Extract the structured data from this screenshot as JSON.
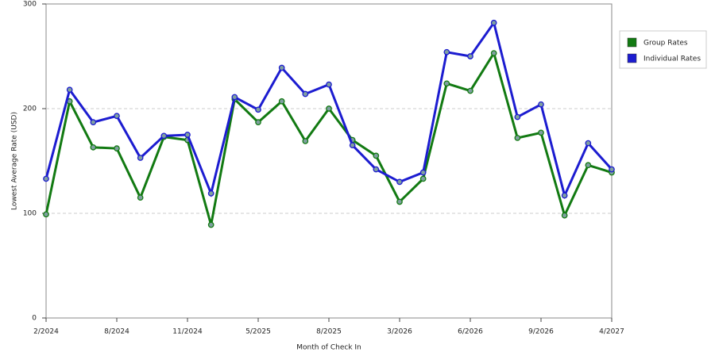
{
  "chart_data": {
    "type": "line",
    "x_label": "Month of Check In",
    "y_label": "Lowest Average Rate (USD)",
    "categories": [
      "2/2024",
      null,
      null,
      "8/2024",
      null,
      null,
      "11/2024",
      null,
      null,
      "5/2025",
      null,
      null,
      "8/2025",
      null,
      null,
      "3/2026",
      null,
      null,
      "6/2026",
      null,
      null,
      "9/2026",
      null,
      null,
      "4/2027"
    ],
    "series": [
      {
        "name": "Group Rates",
        "color": "#127a12",
        "values": [
          99,
          207,
          163,
          162,
          115,
          173,
          170,
          89,
          209,
          187,
          207,
          169,
          200,
          170,
          155,
          111,
          133,
          224,
          217,
          253,
          172,
          177,
          98,
          146,
          139
        ]
      },
      {
        "name": "Individual Rates",
        "color": "#1c1cd0",
        "values": [
          133,
          218,
          187,
          193,
          153,
          174,
          175,
          119,
          211,
          199,
          239,
          214,
          223,
          165,
          142,
          130,
          139,
          254,
          250,
          282,
          192,
          204,
          117,
          167,
          142
        ]
      }
    ],
    "ylim": [
      0,
      300
    ],
    "yticks": [
      0,
      100,
      200,
      300
    ],
    "grid": true,
    "legend": "right"
  }
}
